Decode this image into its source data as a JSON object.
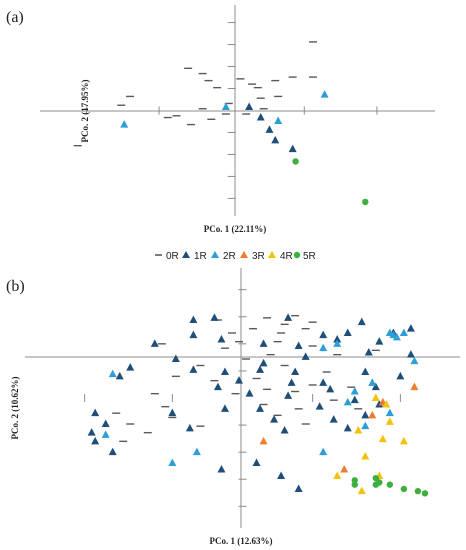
{
  "colors": {
    "0R": "#595959",
    "1R": "#1f4e79",
    "2R": "#2e9fd6",
    "3R": "#ed7d31",
    "4R": "#f4c20d",
    "5R": "#3daf3d"
  },
  "chart_data": {
    "type": "scatter",
    "legend": {
      "placement": "between-panels",
      "entries": [
        {
          "key": "0R",
          "label": "0R",
          "marker": "dash"
        },
        {
          "key": "1R",
          "label": "1R",
          "marker": "triangle"
        },
        {
          "key": "2R",
          "label": "2R",
          "marker": "triangle"
        },
        {
          "key": "3R",
          "label": "3R",
          "marker": "triangle"
        },
        {
          "key": "4R",
          "label": "4R",
          "marker": "triangle"
        },
        {
          "key": "5R",
          "label": "5R",
          "marker": "circle"
        }
      ]
    },
    "panels": [
      {
        "label": "(a)",
        "xlabel": "PCo. 1 (22.11%)",
        "ylabel": "PCo. 2 (17.95%)",
        "xlim": [
          -0.66,
          0.7
        ],
        "ylim": [
          -0.6,
          0.6
        ],
        "xticks": [
          -0.5,
          -0.25,
          0.25,
          0.5
        ],
        "yticks": [
          -0.5,
          -0.375,
          -0.25,
          -0.125,
          0.125,
          0.25,
          0.375,
          0.5
        ],
        "series": [
          {
            "key": "0R",
            "points": [
              [
                0.28,
                0.39
              ],
              [
                -0.15,
                0.24
              ],
              [
                -0.1,
                0.21
              ],
              [
                0.21,
                0.19
              ],
              [
                0.28,
                0.19
              ],
              [
                0.03,
                0.18
              ],
              [
                -0.08,
                0.17
              ],
              [
                0.15,
                0.17
              ],
              [
                0.07,
                0.15
              ],
              [
                -0.05,
                0.13
              ],
              [
                0.09,
                0.13
              ],
              [
                -0.35,
                0.08
              ],
              [
                0.1,
                0.07
              ],
              [
                0.16,
                0.08
              ],
              [
                -0.38,
                0.03
              ],
              [
                -0.01,
                0.04
              ],
              [
                -0.1,
                0.01
              ],
              [
                0.11,
                0.01
              ],
              [
                -0.02,
                -0.02
              ],
              [
                0.05,
                -0.02
              ],
              [
                -0.19,
                -0.03
              ],
              [
                -0.22,
                -0.04
              ],
              [
                -0.07,
                -0.05
              ],
              [
                -0.14,
                -0.08
              ],
              [
                -0.53,
                -0.2
              ]
            ]
          },
          {
            "key": "1R",
            "points": [
              [
                0.06,
                0.02
              ],
              [
                0.1,
                -0.04
              ],
              [
                0.13,
                -0.11
              ],
              [
                0.15,
                -0.17
              ],
              [
                0.21,
                -0.22
              ]
            ]
          },
          {
            "key": "2R",
            "points": [
              [
                0.32,
                0.09
              ],
              [
                -0.37,
                -0.08
              ],
              [
                -0.02,
                0.02
              ],
              [
                0.16,
                -0.06
              ]
            ]
          },
          {
            "key": "5R",
            "points": [
              [
                0.22,
                -0.29
              ],
              [
                0.46,
                -0.52
              ]
            ]
          }
        ]
      },
      {
        "label": "(b)",
        "xlabel": "PCo. 1 (12.63%)",
        "ylabel": "PCo. 2 (10.62%)",
        "xlim": [
          -0.62,
          0.62
        ],
        "ylim": [
          -0.6,
          0.6
        ],
        "xticks": [
          -0.45,
          -0.2,
          0.2,
          0.45
        ],
        "yticks": [
          -0.5,
          -0.375,
          -0.25,
          -0.125,
          0.125,
          0.25,
          0.375,
          0.5
        ],
        "series": [
          {
            "key": "0R",
            "points": [
              [
                0.15,
                0.38
              ],
              [
                0.07,
                0.37
              ],
              [
                -0.07,
                0.36
              ],
              [
                0.2,
                0.35
              ],
              [
                0.12,
                0.34
              ],
              [
                0.03,
                0.32
              ],
              [
                0.18,
                0.32
              ],
              [
                -0.03,
                0.3
              ],
              [
                0.11,
                0.3
              ],
              [
                -0.23,
                0.25
              ],
              [
                -0.01,
                0.26
              ],
              [
                0.1,
                0.26
              ],
              [
                -0.05,
                0.23
              ],
              [
                0.2,
                0.24
              ],
              [
                0.38,
                0.22
              ],
              [
                0.08,
                0.2
              ],
              [
                0.27,
                0.2
              ],
              [
                0.01,
                0.18
              ],
              [
                -0.12,
                0.15
              ],
              [
                0.12,
                0.15
              ],
              [
                -0.19,
                0.1
              ],
              [
                0.24,
                0.12
              ],
              [
                -0.08,
                0.08
              ],
              [
                0.04,
                0.09
              ],
              [
                0.2,
                0.06
              ],
              [
                0.31,
                0.05
              ],
              [
                0.07,
                0.04
              ],
              [
                0.15,
                0.03
              ],
              [
                -0.25,
                0.02
              ],
              [
                -0.02,
                0.02
              ],
              [
                0.26,
                -0.01
              ],
              [
                0.06,
                -0.03
              ],
              [
                -0.22,
                -0.04
              ],
              [
                0.16,
                -0.05
              ],
              [
                0.33,
                -0.05
              ],
              [
                -0.36,
                -0.07
              ],
              [
                0.1,
                -0.08
              ],
              [
                -0.2,
                -0.09
              ],
              [
                -0.32,
                -0.12
              ],
              [
                0.18,
                -0.12
              ],
              [
                -0.12,
                -0.13
              ],
              [
                -0.27,
                -0.16
              ],
              [
                -0.34,
                -0.2
              ]
            ]
          },
          {
            "key": "1R",
            "points": [
              [
                -0.08,
                0.37
              ],
              [
                0.13,
                0.37
              ],
              [
                -0.14,
                0.36
              ],
              [
                0.34,
                0.35
              ],
              [
                0.48,
                0.32
              ],
              [
                0.3,
                0.3
              ],
              [
                0.43,
                0.3
              ],
              [
                -0.14,
                0.29
              ],
              [
                0.23,
                0.29
              ],
              [
                -0.06,
                0.27
              ],
              [
                0.27,
                0.27
              ],
              [
                0.39,
                0.26
              ],
              [
                -0.25,
                0.25
              ],
              [
                0.06,
                0.25
              ],
              [
                0.16,
                0.24
              ],
              [
                0.36,
                0.21
              ],
              [
                0.18,
                0.19
              ],
              [
                0.48,
                0.2
              ],
              [
                -0.19,
                0.18
              ],
              [
                0.06,
                0.16
              ],
              [
                -0.32,
                0.14
              ],
              [
                -0.14,
                0.13
              ],
              [
                0.05,
                0.13
              ],
              [
                -0.05,
                0.12
              ],
              [
                0.15,
                0.12
              ],
              [
                0.35,
                0.12
              ],
              [
                0.45,
                0.1
              ],
              [
                -0.35,
                0.1
              ],
              [
                -0.01,
                0.08
              ],
              [
                0.14,
                0.07
              ],
              [
                0.23,
                0.07
              ],
              [
                -0.07,
                0.05
              ],
              [
                0.02,
                0.02
              ],
              [
                0.25,
                0.04
              ],
              [
                0.38,
                0.05
              ],
              [
                0.13,
                0.01
              ],
              [
                0.32,
                -0.01
              ],
              [
                0.39,
                -0.03
              ],
              [
                0.22,
                -0.04
              ],
              [
                0.05,
                -0.05
              ],
              [
                -0.05,
                -0.05
              ],
              [
                -0.42,
                -0.07
              ],
              [
                -0.2,
                -0.07
              ],
              [
                0.35,
                -0.08
              ],
              [
                0.09,
                -0.1
              ],
              [
                0.26,
                -0.1
              ],
              [
                -0.39,
                -0.12
              ],
              [
                -0.15,
                -0.14
              ],
              [
                0.3,
                -0.14
              ],
              [
                0.12,
                -0.15
              ],
              [
                -0.43,
                -0.16
              ],
              [
                -0.42,
                -0.2
              ],
              [
                -0.37,
                -0.25
              ],
              [
                0.04,
                -0.3
              ],
              [
                -0.06,
                -0.33
              ],
              [
                0.11,
                -0.36
              ],
              [
                0.16,
                -0.42
              ]
            ]
          },
          {
            "key": "2R",
            "points": [
              [
                0.42,
                0.3
              ],
              [
                0.46,
                0.3
              ],
              [
                0.43,
                0.29
              ],
              [
                0.44,
                0.28
              ],
              [
                0.27,
                0.25
              ],
              [
                0.23,
                0.23
              ],
              [
                0.49,
                0.17
              ],
              [
                -0.37,
                0.11
              ],
              [
                0.37,
                0.07
              ],
              [
                0.32,
                0.03
              ],
              [
                0.3,
                -0.02
              ],
              [
                0.42,
                -0.07
              ],
              [
                0.35,
                -0.13
              ],
              [
                -0.39,
                -0.17
              ],
              [
                -0.13,
                -0.25
              ],
              [
                0.23,
                -0.25
              ],
              [
                -0.2,
                -0.3
              ]
            ]
          },
          {
            "key": "3R",
            "points": [
              [
                0.49,
                0.05
              ],
              [
                0.4,
                -0.02
              ],
              [
                0.37,
                -0.08
              ],
              [
                0.06,
                -0.2
              ],
              [
                0.29,
                -0.33
              ]
            ]
          },
          {
            "key": "4R",
            "points": [
              [
                0.38,
                0.0
              ],
              [
                0.41,
                -0.03
              ],
              [
                0.42,
                -0.11
              ],
              [
                0.33,
                -0.15
              ],
              [
                0.4,
                -0.19
              ],
              [
                0.46,
                -0.2
              ],
              [
                0.35,
                -0.27
              ],
              [
                0.27,
                -0.36
              ],
              [
                0.39,
                -0.36
              ],
              [
                0.34,
                -0.43
              ]
            ]
          },
          {
            "key": "5R",
            "points": [
              [
                0.38,
                -0.37
              ],
              [
                0.32,
                -0.38
              ],
              [
                0.39,
                -0.39
              ],
              [
                0.32,
                -0.4
              ],
              [
                0.42,
                -0.4
              ],
              [
                0.38,
                -0.4
              ],
              [
                0.46,
                -0.42
              ],
              [
                0.5,
                -0.43
              ],
              [
                0.52,
                -0.44
              ]
            ]
          }
        ]
      }
    ]
  }
}
